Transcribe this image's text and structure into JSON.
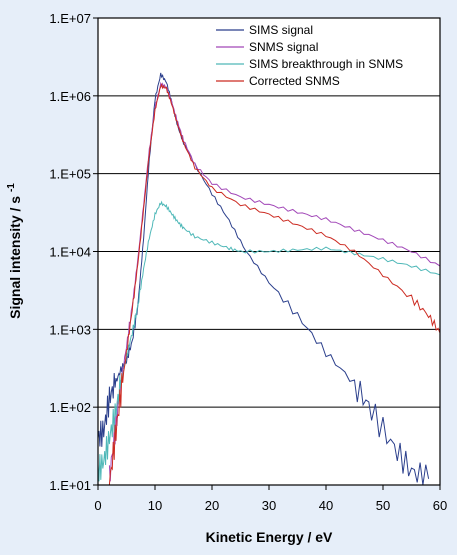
{
  "chart_data": {
    "type": "line",
    "title": "",
    "xlabel": "Kinetic Energy / eV",
    "ylabel": "Signal intensity / s",
    "ylabel_superscript": "-1",
    "xlim": [
      0,
      60
    ],
    "ylim": [
      10,
      10000000
    ],
    "yscale": "log",
    "x_ticks": [
      0,
      10,
      20,
      30,
      40,
      50,
      60
    ],
    "x_tick_labels": [
      "0",
      "10",
      "20",
      "30",
      "40",
      "50",
      "60"
    ],
    "y_ticks": [
      10,
      100,
      1000,
      10000,
      100000,
      1000000,
      10000000
    ],
    "y_tick_labels": [
      "1.E+01",
      "1.E+02",
      "1.E+03",
      "1.E+04",
      "1.E+05",
      "1.E+06",
      "1.E+07"
    ],
    "grid": "horizontal",
    "legend_position": "top-right",
    "series": [
      {
        "name": "SIMS signal",
        "color": "#2b3f8c",
        "x": [
          0,
          1,
          2,
          3,
          4,
          5,
          6,
          7,
          8,
          9,
          10,
          11,
          12,
          13,
          14,
          15,
          17,
          20,
          23,
          26,
          30,
          35,
          40,
          45,
          48,
          52,
          55,
          58
        ],
        "y": [
          40,
          50,
          130,
          200,
          300,
          400,
          700,
          2000,
          15000,
          150000,
          900000,
          1900000,
          1500000,
          800000,
          400000,
          250000,
          130000,
          55000,
          25000,
          10000,
          4000,
          1500,
          500,
          200,
          90,
          30,
          15,
          12
        ]
      },
      {
        "name": "SNMS signal",
        "color": "#a248b8",
        "x": [
          2,
          3,
          4,
          5,
          6,
          7,
          8,
          9,
          10,
          11,
          12,
          13,
          14,
          15,
          17,
          20,
          25,
          30,
          35,
          40,
          45,
          50,
          55,
          60
        ],
        "y": [
          12,
          50,
          200,
          600,
          2000,
          8000,
          40000,
          200000,
          700000,
          1400000,
          1300000,
          800000,
          450000,
          270000,
          130000,
          75000,
          50000,
          40000,
          32000,
          26000,
          19000,
          14000,
          10000,
          6500
        ]
      },
      {
        "name": "SIMS breakthrough in SNMS",
        "color": "#4fb8b8",
        "x": [
          0,
          1,
          2,
          3,
          4,
          5,
          6,
          7,
          8,
          9,
          10,
          11,
          12,
          13,
          14,
          15,
          17,
          20,
          23,
          25,
          30,
          35,
          40,
          45,
          50,
          55,
          60
        ],
        "y": [
          15,
          20,
          40,
          80,
          200,
          450,
          900,
          2000,
          6000,
          15000,
          30000,
          42000,
          38000,
          30000,
          24000,
          20000,
          15500,
          13000,
          11000,
          10000,
          10000,
          10500,
          11000,
          9500,
          8000,
          6500,
          5000
        ]
      },
      {
        "name": "Corrected SNMS",
        "color": "#cc2b22",
        "x": [
          2,
          3,
          4,
          5,
          6,
          7,
          8,
          9,
          10,
          11,
          12,
          13,
          14,
          15,
          17,
          20,
          25,
          30,
          35,
          40,
          45,
          50,
          55,
          58,
          60
        ],
        "y": [
          10,
          40,
          150,
          500,
          1800,
          7000,
          35000,
          180000,
          650000,
          1350000,
          1250000,
          750000,
          420000,
          250000,
          120000,
          65000,
          40000,
          30000,
          22000,
          16000,
          10000,
          5000,
          2500,
          1500,
          900
        ]
      }
    ]
  }
}
